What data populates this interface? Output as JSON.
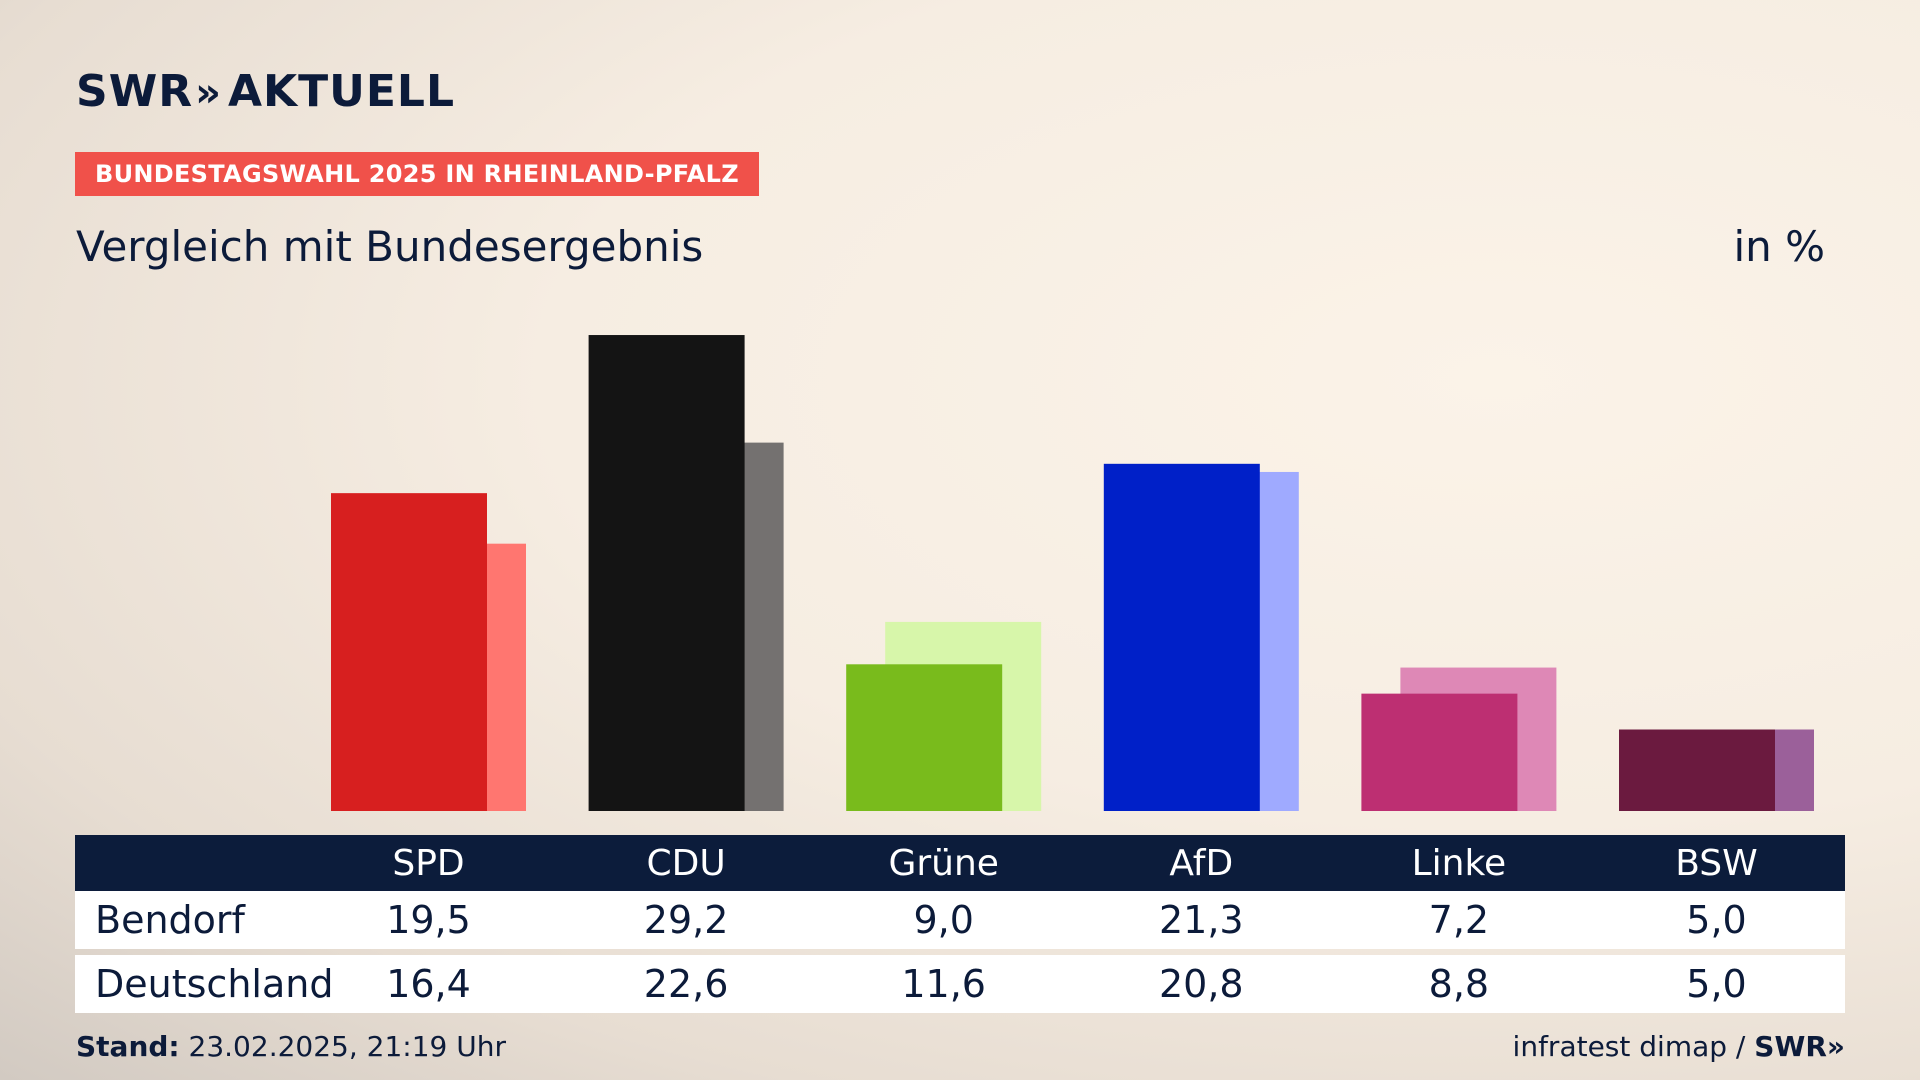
{
  "header": {
    "logo_text": "SWR",
    "logo_chevron": "»",
    "logo_suffix": "AKTUELL",
    "tag": "BUNDESTAGSWAHL 2025 IN RHEINLAND-PFALZ",
    "subtitle": "Vergleich mit Bundesergebnis",
    "unit": "in %"
  },
  "chart_data": {
    "type": "bar",
    "title": "Vergleich mit Bundesergebnis",
    "ylabel": "in %",
    "ylim": [
      0,
      32
    ],
    "categories": [
      "SPD",
      "CDU",
      "Grüne",
      "AfD",
      "Linke",
      "BSW"
    ],
    "series": [
      {
        "name": "Bendorf",
        "values": [
          19.5,
          29.2,
          9.0,
          21.3,
          7.2,
          5.0
        ],
        "colors": [
          "#d71f1f",
          "#141414",
          "#79bb1c",
          "#0020c8",
          "#bd2f72",
          "#6b1a3f"
        ]
      },
      {
        "name": "Deutschland",
        "values": [
          16.4,
          22.6,
          11.6,
          20.8,
          8.8,
          5.0
        ],
        "colors": [
          "#ff7670",
          "#747170",
          "#d7f6aa",
          "#9faaff",
          "#de88b6",
          "#9b609a"
        ]
      }
    ],
    "value_labels": {
      "Bendorf": [
        "19,5",
        "29,2",
        "9,0",
        "21,3",
        "7,2",
        "5,0"
      ],
      "Deutschland": [
        "16,4",
        "22,6",
        "11,6",
        "20,8",
        "8,8",
        "5,0"
      ]
    },
    "grid": false,
    "legend": "table-below"
  },
  "footer": {
    "stand_label": "Stand:",
    "stand_value": "23.02.2025, 21:19 Uhr",
    "source": "infratest dimap /",
    "brand": "SWR",
    "brand_chevron": "»"
  }
}
